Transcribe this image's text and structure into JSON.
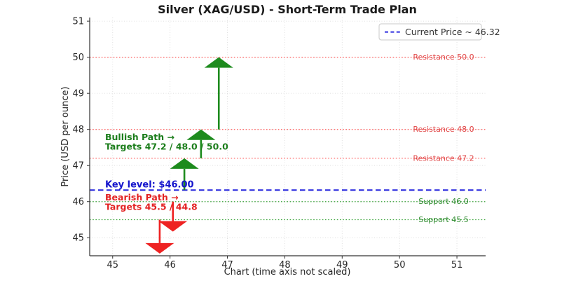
{
  "title": "Silver (XAG/USD) - Short-Term Trade Plan",
  "chart_data": {
    "type": "line",
    "title": "Silver (XAG/USD) - Short-Term Trade Plan",
    "xlabel": "Chart (time axis not scaled)",
    "ylabel": "Price (USD per ounce)",
    "xlim": [
      44.6,
      51.5
    ],
    "ylim": [
      44.5,
      51.1
    ],
    "xticks": [
      45,
      46,
      47,
      48,
      49,
      50,
      51
    ],
    "yticks": [
      45,
      46,
      47,
      48,
      49,
      50,
      51
    ],
    "grid": true,
    "legend": {
      "position": "upper right",
      "label": "Current Price ~ 46.32"
    },
    "current_price": {
      "value": 46.32
    },
    "resistance_levels": [
      {
        "value": 50.0,
        "label": "Resistance 50.0"
      },
      {
        "value": 48.0,
        "label": "Resistance 48.0"
      },
      {
        "value": 47.2,
        "label": "Resistance 47.2"
      }
    ],
    "support_levels": [
      {
        "value": 46.0,
        "label": "Support 46.0"
      },
      {
        "value": 45.5,
        "label": "Support 45.5"
      }
    ],
    "bullish_arrows": [
      {
        "x": 46.25,
        "from": 46.32,
        "to": 47.2
      },
      {
        "x": 46.54,
        "from": 47.2,
        "to": 48.0
      },
      {
        "x": 46.85,
        "from": 48.0,
        "to": 50.0
      }
    ],
    "bearish_arrows": [
      {
        "x": 46.05,
        "from": 46.0,
        "to": 45.17
      },
      {
        "x": 45.82,
        "from": 45.5,
        "to": 44.56
      }
    ],
    "annotations": {
      "bullish_line1": "Bullish Path →",
      "bullish_line2": "Targets 47.2 / 48.0 / 50.0",
      "key_level": "Key level: $46.00",
      "bearish_line1": "Bearish Path →",
      "bearish_line2": "Targets 45.5 / 44.8"
    }
  },
  "colors": {
    "bullish_green": "#1e8b1e",
    "bullish_text": "#1b7d1b",
    "support_line": "#3aa33a",
    "support_text": "#2e8b2e",
    "bearish_red": "#ee2222",
    "bearish_text": "#e32222",
    "resistance_line": "#ff6b6b",
    "resistance_text": "#e04343",
    "current_price_line": "#2323dd",
    "key_level_text": "#1515cc",
    "grid": "#dedede",
    "spine": "#333333",
    "legend_border": "#c8c8c8"
  }
}
